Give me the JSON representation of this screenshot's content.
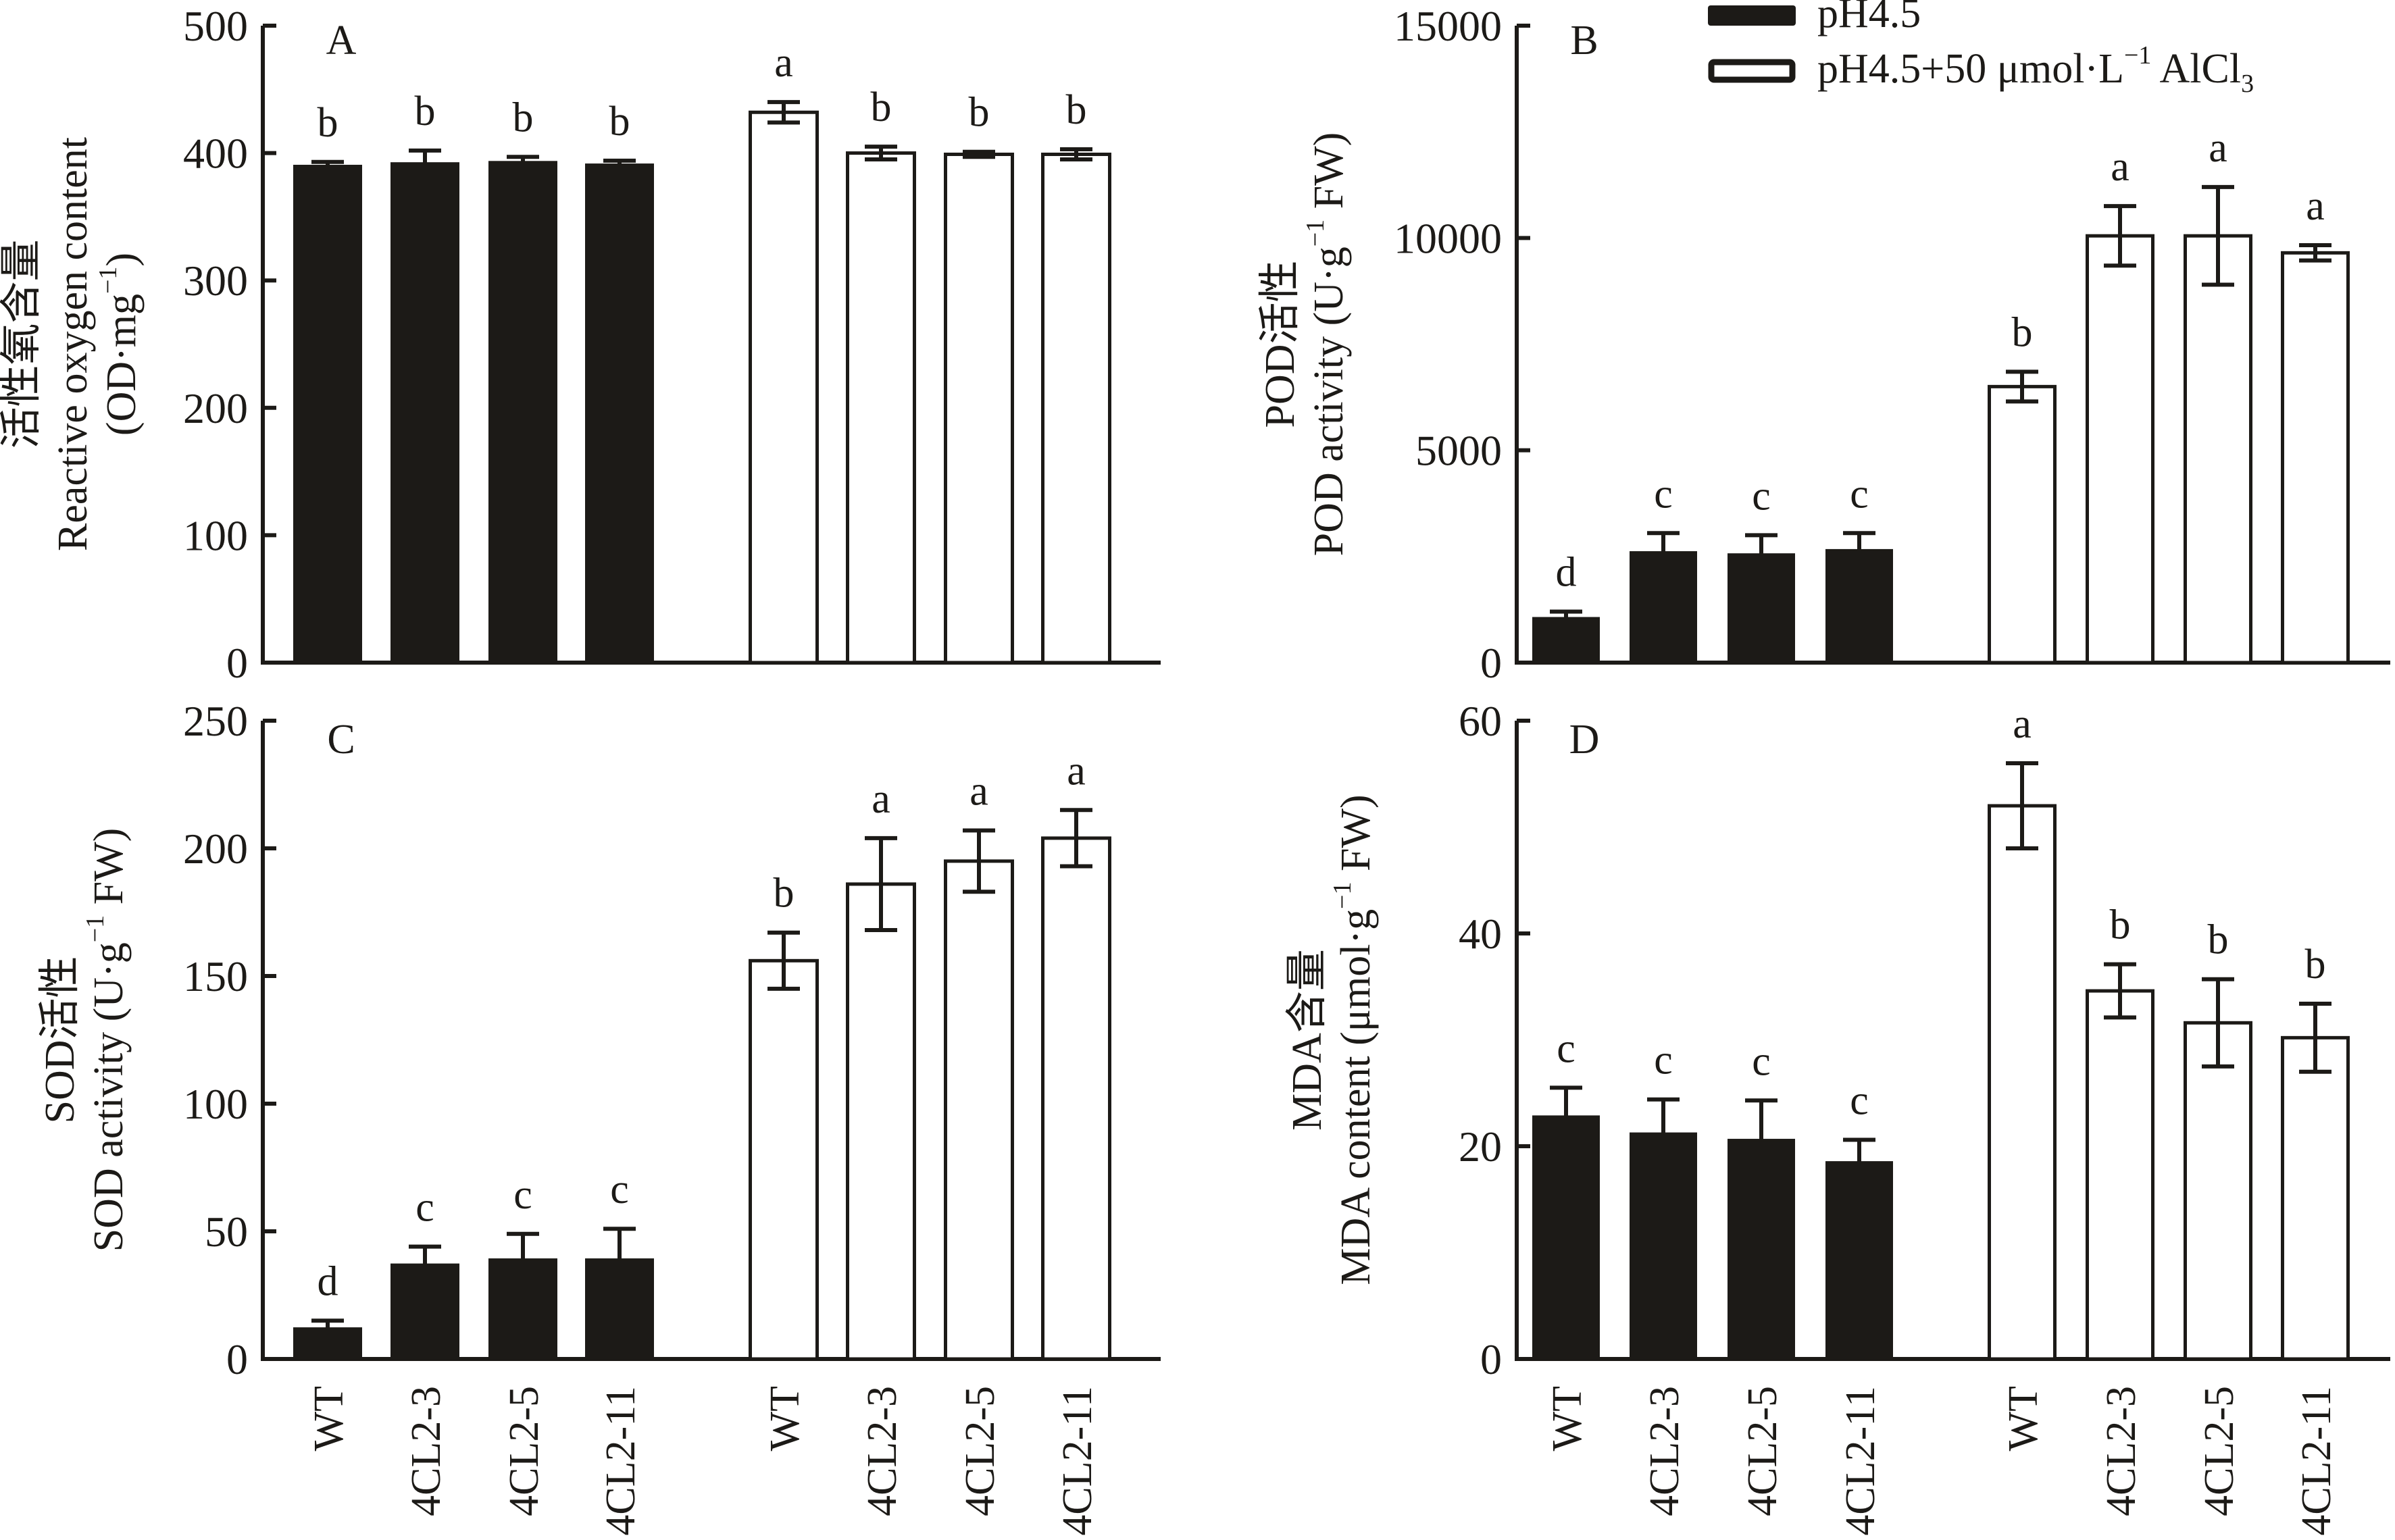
{
  "colors": {
    "ink": "#1c1a17",
    "filled": "#1c1a17",
    "open": "#ffffff"
  },
  "legend": {
    "position": "top-right",
    "entries": [
      {
        "label": "pH4.5",
        "style": "filled"
      },
      {
        "label_main": "pH4.5+50 μmol·L",
        "label_sup": "−1",
        "label_tail": " AlCl",
        "label_sub": "3",
        "style": "open"
      }
    ]
  },
  "x_categories": [
    "WT",
    "4CL2-3",
    "4CL2-5",
    "4CL2-11",
    "WT",
    "4CL2-3",
    "4CL2-5",
    "4CL2-11"
  ],
  "chart_data": [
    {
      "panel": "A",
      "type": "bar",
      "ylabel_cn": "活性氧含量",
      "ylabel_en": "Reactive oxygen content",
      "ylabel_unit_main": "(OD·mg",
      "ylabel_unit_sup": "−1",
      "ylabel_unit_tail": ")",
      "ylim": [
        0,
        500
      ],
      "yticks": [
        "0",
        "100",
        "200",
        "300",
        "400",
        "500"
      ],
      "tick_values": [
        0,
        100,
        200,
        300,
        400,
        500
      ],
      "show_xlabels": false,
      "series": [
        {
          "name": "pH4.5",
          "values": [
            390,
            392,
            393,
            391
          ],
          "errors": [
            3,
            10,
            4,
            3
          ],
          "letters": [
            "b",
            "b",
            "b",
            "b"
          ]
        },
        {
          "name": "pH4.5+50 μmol·L−1 AlCl3",
          "values": [
            432,
            400,
            399,
            399
          ],
          "errors": [
            8,
            5,
            2,
            4
          ],
          "letters": [
            "a",
            "b",
            "b",
            "b"
          ]
        }
      ]
    },
    {
      "panel": "B",
      "type": "bar",
      "ylabel_cn": "POD活性",
      "ylabel_en": "POD activity (U·g",
      "ylabel_unit_main": "",
      "ylabel_unit_sup": "−1",
      "ylabel_unit_tail": " FW)",
      "ylim": [
        0,
        15000
      ],
      "yticks": [
        "0",
        "5000",
        "10000",
        "15000"
      ],
      "tick_values": [
        0,
        5000,
        10000,
        15000
      ],
      "show_xlabels": false,
      "series": [
        {
          "name": "pH4.5",
          "values": [
            1050,
            2600,
            2550,
            2650
          ],
          "errors": [
            150,
            450,
            450,
            400
          ],
          "letters": [
            "d",
            "c",
            "c",
            "c"
          ]
        },
        {
          "name": "pH4.5+50 μmol·L−1 AlCl3",
          "values": [
            6500,
            10050,
            10050,
            9650
          ],
          "errors": [
            350,
            700,
            1150,
            180
          ],
          "letters": [
            "b",
            "a",
            "a",
            "a"
          ]
        }
      ]
    },
    {
      "panel": "C",
      "type": "bar",
      "ylabel_cn": "SOD活性",
      "ylabel_en": "SOD activity (U·g",
      "ylabel_unit_main": "",
      "ylabel_unit_sup": "−1",
      "ylabel_unit_tail": " FW)",
      "ylim": [
        0,
        250
      ],
      "yticks": [
        "0",
        "50",
        "100",
        "150",
        "200",
        "250"
      ],
      "tick_values": [
        0,
        50,
        100,
        150,
        200,
        250
      ],
      "show_xlabels": true,
      "series": [
        {
          "name": "pH4.5",
          "values": [
            12,
            37,
            39,
            39
          ],
          "errors": [
            3,
            7,
            10,
            12
          ],
          "letters": [
            "d",
            "c",
            "c",
            "c"
          ]
        },
        {
          "name": "pH4.5+50 μmol·L−1 AlCl3",
          "values": [
            156,
            186,
            195,
            204
          ],
          "errors": [
            11,
            18,
            12,
            11
          ],
          "letters": [
            "b",
            "a",
            "a",
            "a"
          ]
        }
      ]
    },
    {
      "panel": "D",
      "type": "bar",
      "ylabel_cn": "MDA含量",
      "ylabel_en": "MDA content (μmol·g",
      "ylabel_unit_main": "",
      "ylabel_unit_sup": "−1",
      "ylabel_unit_tail": " FW)",
      "ylim": [
        0,
        60
      ],
      "yticks": [
        "0",
        "20",
        "40",
        "60"
      ],
      "tick_values": [
        0,
        20,
        40,
        60
      ],
      "show_xlabels": true,
      "series": [
        {
          "name": "pH4.5",
          "values": [
            22.8,
            21.2,
            20.6,
            18.5
          ],
          "errors": [
            2.7,
            3.2,
            3.7,
            2.1
          ],
          "letters": [
            "c",
            "c",
            "c",
            "c"
          ]
        },
        {
          "name": "pH4.5+50 μmol·L−1 AlCl3",
          "values": [
            52.0,
            34.6,
            31.6,
            30.2
          ],
          "errors": [
            4.0,
            2.5,
            4.1,
            3.2
          ],
          "letters": [
            "a",
            "b",
            "b",
            "b"
          ]
        }
      ]
    }
  ]
}
